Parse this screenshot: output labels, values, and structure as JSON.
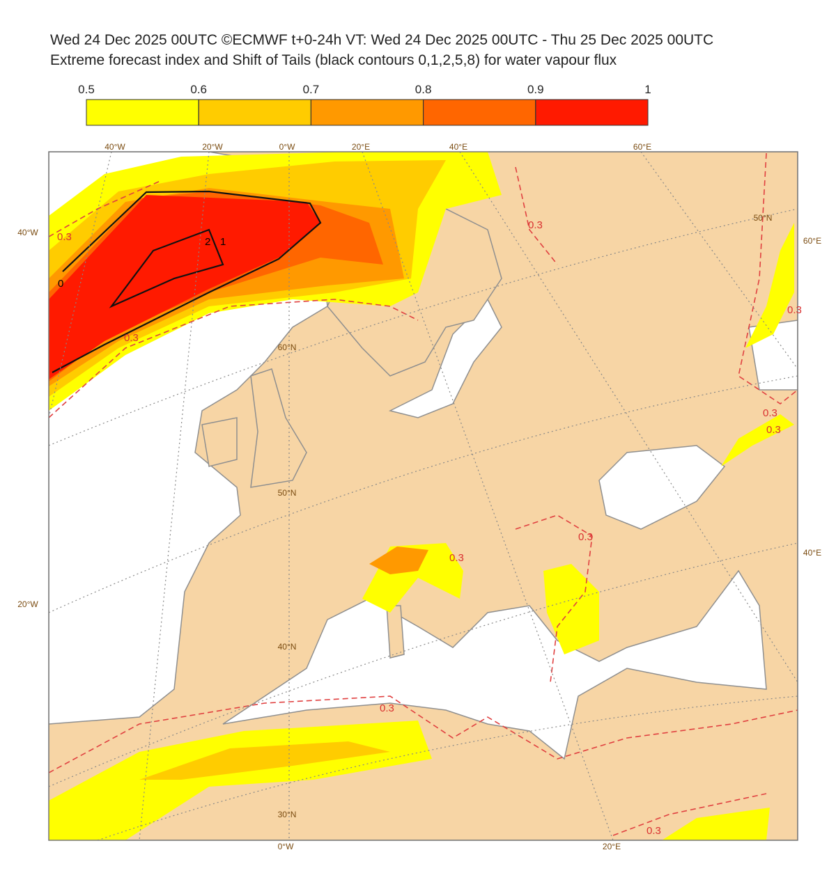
{
  "header": {
    "title": "Wed 24 Dec 2025 00UTC ©ECMWF t+0-24h  VT: Wed 24 Dec 2025 00UTC - Thu 25 Dec 2025 00UTC",
    "subtitle": "Extreme forecast index and Shift of Tails (black contours 0,1,2,5,8) for water vapour flux"
  },
  "colorbar": {
    "ticks": [
      0.5,
      0.6,
      0.7,
      0.8,
      0.9,
      1
    ],
    "colors": [
      "#ffff00",
      "#ffcc00",
      "#ff9900",
      "#ff6600",
      "#ff1a00"
    ]
  },
  "map_labels": {
    "top": [
      "40°W",
      "20°W",
      "0°W",
      "20°E",
      "40°E",
      "60°E"
    ],
    "left": [
      "40°W",
      "20°W"
    ],
    "right": [
      "60°E",
      "40°E"
    ],
    "bottom": [
      "0°W",
      "20°E"
    ],
    "inner": [
      "60°N",
      "50°N",
      "40°N",
      "30°N",
      "50°N"
    ]
  },
  "contour_labels": [
    "0.3",
    "0.3",
    "0.3",
    "0.3",
    "0.3",
    "0.3",
    "0.3",
    "0.3",
    "0.3",
    "0.3"
  ],
  "sot_labels": [
    "0",
    "2",
    "1"
  ]
}
